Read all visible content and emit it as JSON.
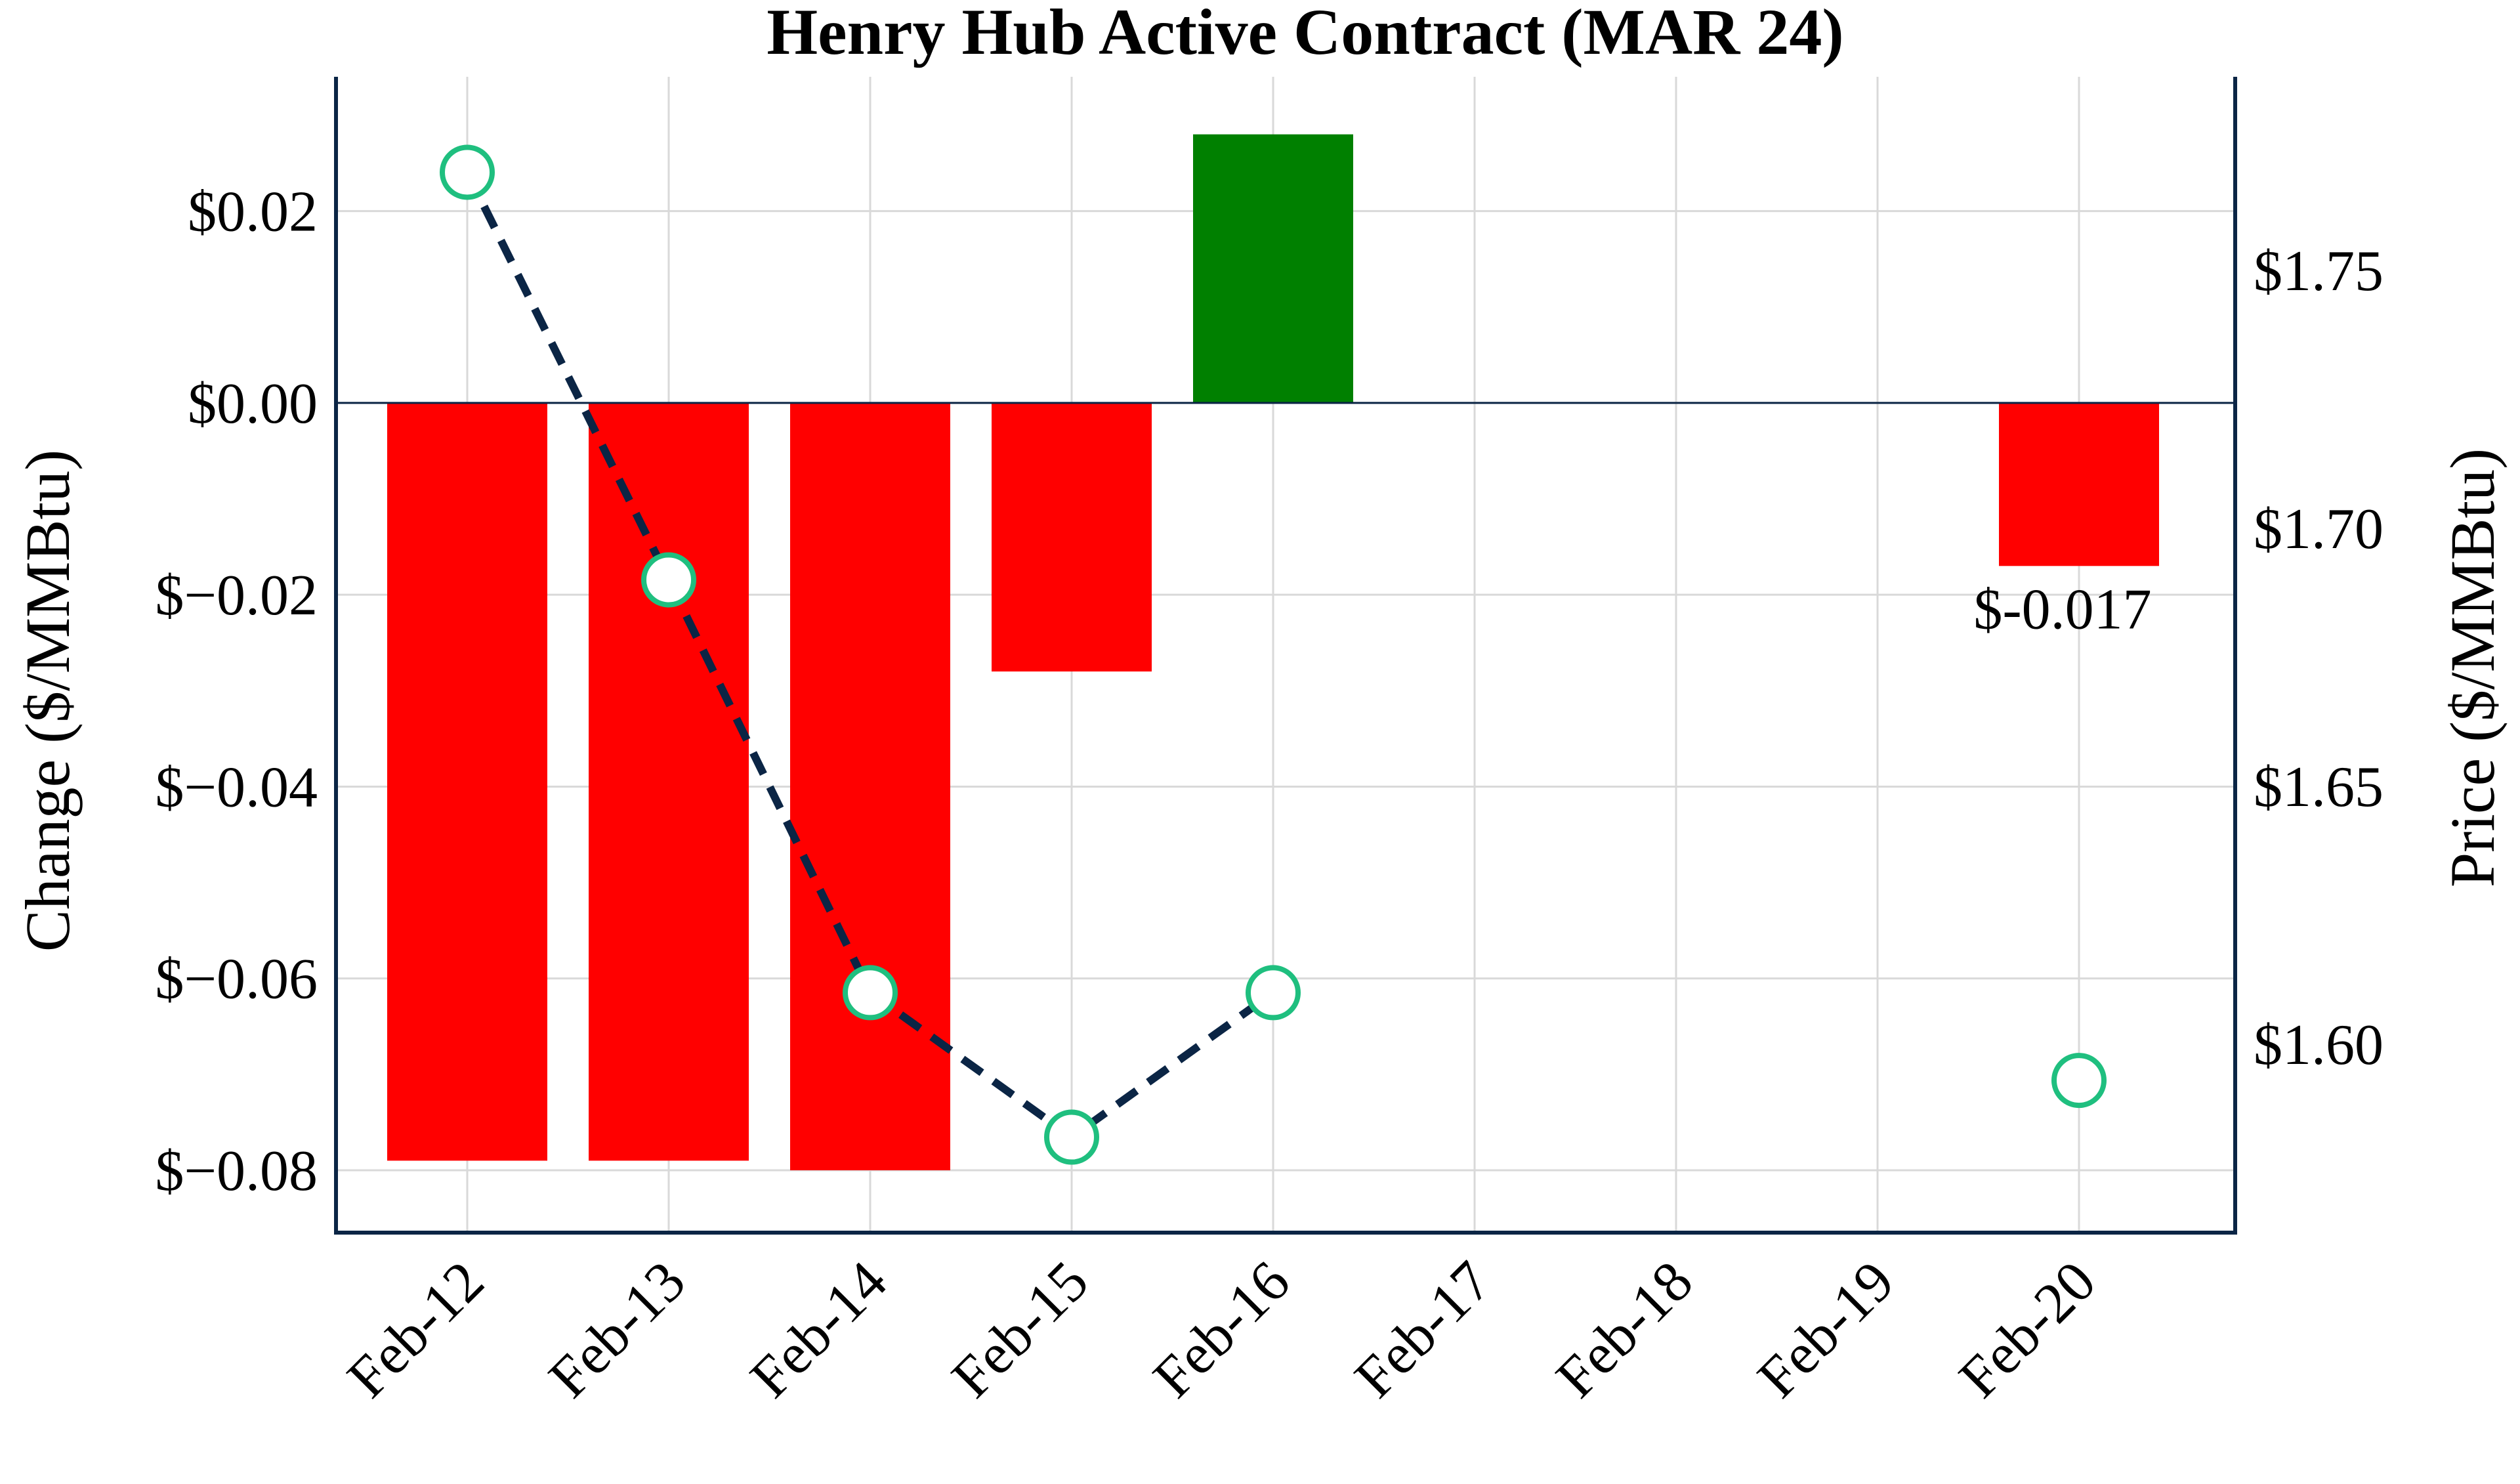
{
  "chart_data": {
    "type": "bar",
    "title": "Henry Hub Active Contract (MAR 24)",
    "xlabel": "",
    "ylabel": "Change ($/MMBtu)",
    "ylabel_right": "Price ($/MMBtu)",
    "categories": [
      "Feb-12",
      "Feb-13",
      "Feb-14",
      "Feb-15",
      "Feb-16",
      "Feb-17",
      "Feb-18",
      "Feb-19",
      "Feb-20"
    ],
    "series": [
      {
        "kind": "bar",
        "axis": "left",
        "values": [
          -0.079,
          -0.079,
          -0.08,
          -0.028,
          0.028,
          null,
          null,
          null,
          -0.017
        ]
      },
      {
        "kind": "line",
        "axis": "right",
        "style": "dashed",
        "marker": "hollow-circle",
        "values": [
          1.769,
          1.69,
          1.61,
          1.582,
          1.61,
          null,
          null,
          null,
          1.593
        ]
      }
    ],
    "ylim": [
      -0.0865,
      0.034
    ],
    "ylim_right": [
      1.5635,
      1.7875
    ],
    "yticks": [
      -0.08,
      -0.06,
      -0.04,
      -0.02,
      0.0,
      0.02
    ],
    "ytick_labels": [
      "$−0.08",
      "$−0.06",
      "$−0.04",
      "$−0.02",
      "$0.00",
      "$0.02"
    ],
    "yticks_right": [
      1.6,
      1.65,
      1.7,
      1.75
    ],
    "ytick_labels_right": [
      "$1.60",
      "$1.65",
      "$1.70",
      "$1.75"
    ],
    "annotations": [
      {
        "category": "Feb-20",
        "value": -0.017,
        "text": "$-0.017"
      }
    ],
    "grid": true,
    "legend": "none",
    "colors": {
      "negative_bar": "#ff0000",
      "positive_bar": "#008000",
      "line": "#0b2545",
      "marker_edge": "#1fbf7f",
      "marker_fill": "#ffffff",
      "frame": "#0b2545",
      "grid": "#d9d9d9"
    }
  }
}
